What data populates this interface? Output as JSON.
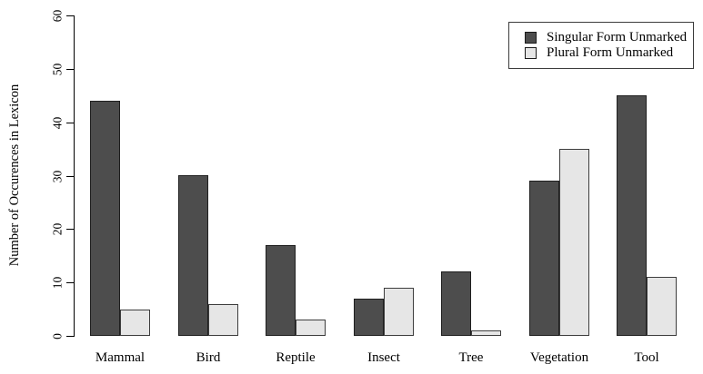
{
  "chart_data": {
    "type": "bar",
    "title": "",
    "xlabel": "",
    "ylabel": "Number of Occurences in Lexicon",
    "categories": [
      "Mammal",
      "Bird",
      "Reptile",
      "Insect",
      "Tree",
      "Vegetation",
      "Tool"
    ],
    "series": [
      {
        "name": "Singular Form Unmarked",
        "color": "#4d4d4d",
        "border_color": "#1f1f1f",
        "values": [
          44,
          30,
          17,
          7,
          12,
          29,
          45
        ]
      },
      {
        "name": "Plural Form Unmarked",
        "color": "#e6e6e6",
        "border_color": "#3d3d3d",
        "values": [
          5,
          6,
          3,
          9,
          1,
          35,
          11
        ]
      }
    ],
    "ylim": [
      0,
      60
    ],
    "yticks": [
      0,
      10,
      20,
      30,
      40,
      50,
      60
    ],
    "grid": "off",
    "legend_position": "top-right",
    "axis_color": "#000000",
    "background_color": "#ffffff"
  }
}
